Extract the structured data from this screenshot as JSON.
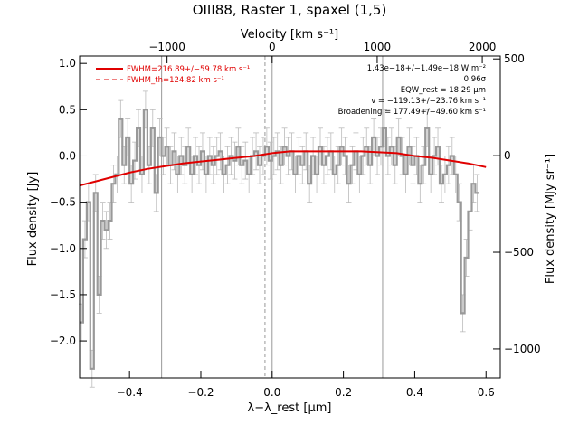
{
  "chart_data": {
    "type": "line",
    "title": "OIII88, Raster 1, spaxel (1,5)",
    "xlabel": "λ−λ_rest [μm]",
    "ylabel_left": "Flux density [Jy]",
    "ylabel_right": "Flux density [MJy sr⁻¹]",
    "xlabel_top": "Velocity [km s⁻¹]",
    "xlim": [
      -0.54,
      0.64
    ],
    "ylim_left": [
      -2.4,
      1.08
    ],
    "ylim_right": [
      -1150,
      515
    ],
    "top_axis": {
      "unit": "km/s",
      "ticks": [
        -1000,
        0,
        1000,
        2000
      ],
      "tick_labels": [
        "−1000",
        "0",
        "1000",
        "2000"
      ]
    },
    "x_ticks": [
      -0.4,
      -0.2,
      0.0,
      0.2,
      0.4,
      0.6
    ],
    "x_tick_labels": [
      "−0.4",
      "−0.2",
      "0.0",
      "0.2",
      "0.4",
      "0.6"
    ],
    "y_ticks_left": [
      1.0,
      0.5,
      0.0,
      -0.5,
      -1.0,
      -1.5,
      -2.0
    ],
    "y_tick_labels_left": [
      "1.0",
      "0.5",
      "0.0",
      "−0.5",
      "−1.0",
      "−1.5",
      "−2.0"
    ],
    "y_ticks_right": [
      500,
      0,
      -500,
      -1000
    ],
    "y_tick_labels_right": [
      "500",
      "0",
      "−500",
      "−1000"
    ],
    "vertical_lines": [
      {
        "x": -0.31,
        "style": "solid",
        "color": "#999999"
      },
      {
        "x": -0.02,
        "style": "dashed",
        "color": "#999999"
      },
      {
        "x": 0.0,
        "style": "solid",
        "color": "#999999"
      },
      {
        "x": 0.31,
        "style": "solid",
        "color": "#999999"
      }
    ],
    "series": [
      {
        "style": "steps-with-errorbars",
        "color": "#999999",
        "x": [
          -0.535,
          -0.525,
          -0.515,
          -0.505,
          -0.495,
          -0.485,
          -0.475,
          -0.465,
          -0.455,
          -0.445,
          -0.435,
          -0.425,
          -0.415,
          -0.405,
          -0.395,
          -0.385,
          -0.375,
          -0.365,
          -0.355,
          -0.345,
          -0.335,
          -0.325,
          -0.315,
          -0.305,
          -0.295,
          -0.285,
          -0.275,
          -0.265,
          -0.255,
          -0.245,
          -0.235,
          -0.225,
          -0.215,
          -0.205,
          -0.195,
          -0.185,
          -0.175,
          -0.165,
          -0.155,
          -0.145,
          -0.135,
          -0.125,
          -0.115,
          -0.105,
          -0.095,
          -0.085,
          -0.075,
          -0.065,
          -0.055,
          -0.045,
          -0.035,
          -0.025,
          -0.015,
          -0.005,
          0.005,
          0.015,
          0.025,
          0.035,
          0.045,
          0.055,
          0.065,
          0.075,
          0.085,
          0.095,
          0.105,
          0.115,
          0.125,
          0.135,
          0.145,
          0.155,
          0.165,
          0.175,
          0.185,
          0.195,
          0.205,
          0.215,
          0.225,
          0.235,
          0.245,
          0.255,
          0.265,
          0.275,
          0.285,
          0.295,
          0.305,
          0.315,
          0.325,
          0.335,
          0.345,
          0.355,
          0.365,
          0.375,
          0.385,
          0.395,
          0.405,
          0.415,
          0.425,
          0.435,
          0.445,
          0.455,
          0.465,
          0.475,
          0.485,
          0.495,
          0.505,
          0.515,
          0.525,
          0.535,
          0.545,
          0.555,
          0.565,
          0.575
        ],
        "y": [
          -1.8,
          -0.9,
          -0.5,
          -2.3,
          -0.4,
          -1.5,
          -0.7,
          -0.8,
          -0.7,
          -0.3,
          -0.2,
          0.4,
          -0.1,
          0.2,
          -0.3,
          -0.05,
          0.3,
          -0.2,
          0.5,
          -0.1,
          0.3,
          -0.4,
          0.2,
          0.0,
          0.1,
          -0.1,
          0.05,
          -0.2,
          0.0,
          -0.1,
          0.1,
          -0.2,
          0.0,
          -0.1,
          0.05,
          -0.2,
          0.0,
          -0.1,
          0.0,
          0.05,
          -0.2,
          -0.1,
          0.0,
          -0.05,
          0.1,
          -0.1,
          -0.05,
          -0.2,
          0.0,
          0.05,
          -0.1,
          0.0,
          0.1,
          -0.05,
          0.0,
          0.05,
          -0.1,
          0.1,
          0.0,
          0.05,
          -0.2,
          0.0,
          -0.1,
          0.05,
          -0.3,
          0.0,
          -0.2,
          0.1,
          -0.1,
          0.0,
          0.05,
          -0.2,
          -0.1,
          0.1,
          0.0,
          -0.3,
          -0.1,
          0.05,
          -0.2,
          0.0,
          0.1,
          -0.1,
          0.2,
          0.0,
          0.1,
          0.3,
          0.0,
          0.1,
          -0.1,
          0.2,
          0.0,
          -0.2,
          0.1,
          -0.1,
          0.0,
          -0.3,
          -0.1,
          0.3,
          -0.2,
          0.0,
          0.1,
          -0.3,
          -0.2,
          -0.1,
          0.0,
          -0.2,
          -0.5,
          -1.7,
          -1.1,
          -0.6,
          -0.3,
          -0.4
        ],
        "err": 0.2
      },
      {
        "name": "FWHM=216.89+/−59.78 km s⁻¹",
        "style": "solid",
        "color": "#e00000",
        "x": [
          -0.54,
          -0.5,
          -0.45,
          -0.4,
          -0.35,
          -0.3,
          -0.25,
          -0.2,
          -0.15,
          -0.1,
          -0.05,
          0.0,
          0.05,
          0.1,
          0.15,
          0.2,
          0.25,
          0.3,
          0.35,
          0.4,
          0.45,
          0.5,
          0.55,
          0.6
        ],
        "y": [
          -0.32,
          -0.28,
          -0.23,
          -0.18,
          -0.14,
          -0.11,
          -0.08,
          -0.06,
          -0.04,
          -0.02,
          0.0,
          0.03,
          0.05,
          0.05,
          0.05,
          0.05,
          0.05,
          0.04,
          0.03,
          0.0,
          -0.02,
          -0.05,
          -0.08,
          -0.12
        ]
      },
      {
        "name": "FWHM_th=124.82 km s⁻¹",
        "style": "dashed",
        "color": "#e00000",
        "x": [],
        "y": []
      }
    ],
    "annotations": [
      "1.43e−18+/−1.49e−18 W m⁻²",
      "0.96σ",
      "EQW_rest = 18.29 μm",
      "v = −119.13+/−23.76 km s⁻¹",
      "Broadening = 177.49+/−49.60 km s⁻¹"
    ],
    "legend": [
      "FWHM=216.89+/−59.78 km s⁻¹",
      "FWHM_th=124.82 km s⁻¹"
    ],
    "legend_position": "top-left",
    "grid": false,
    "colors": {
      "data": "#999999",
      "model": "#e00000",
      "axes": "#000000"
    }
  }
}
